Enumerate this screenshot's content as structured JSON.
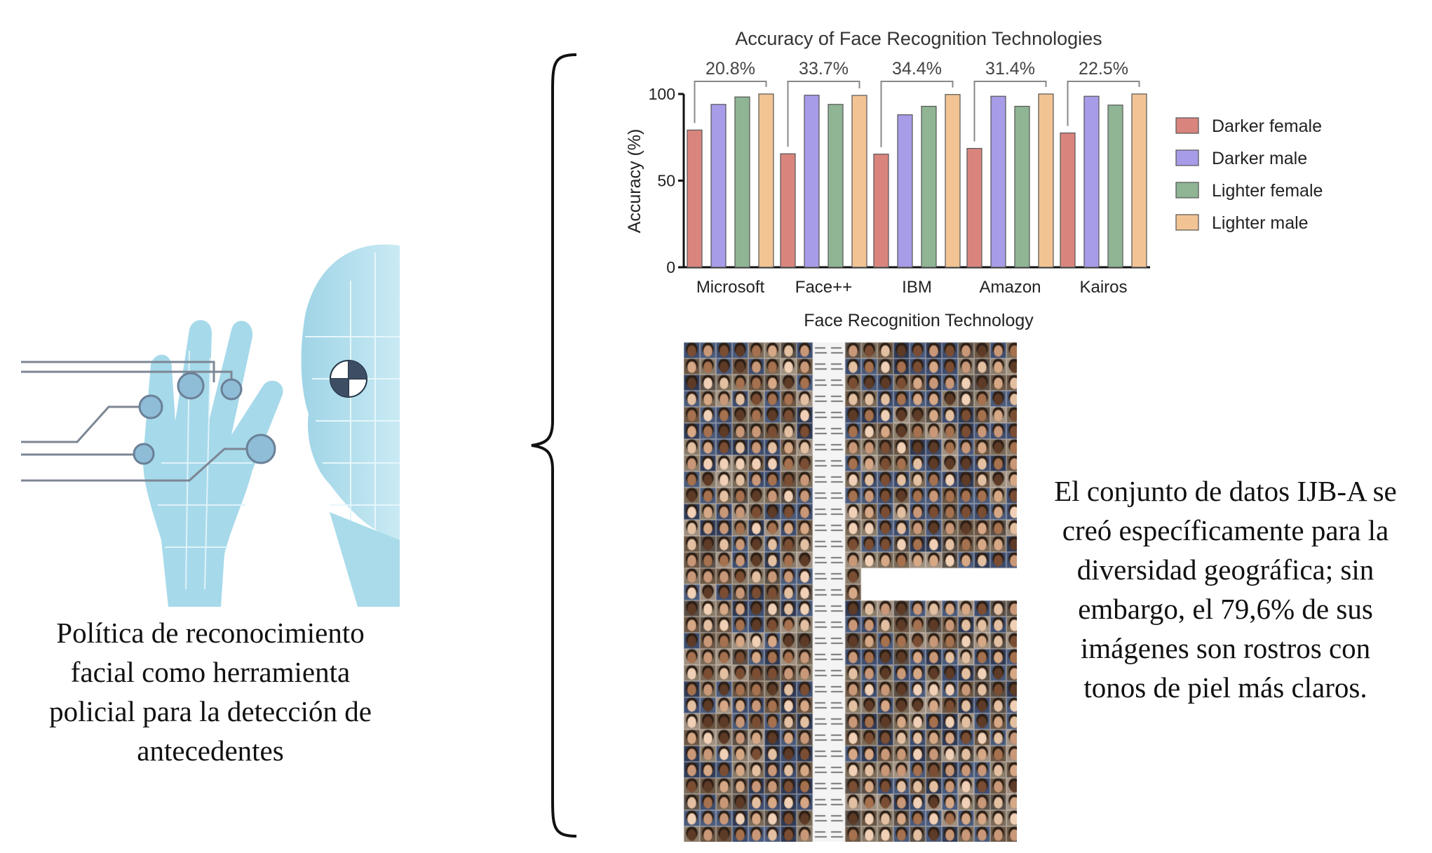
{
  "left_caption": "Política de reconocimiento\nfacial como herramienta\npolicial para la detección de\nantecedentes",
  "right_caption": "El conjunto de datos IJB-A se\ncreó específicamente para la\ndiversidad geográfica; sin\nembargo, el 79,6% de sus\nimágenes son rostros con\ntonos de piel más claros.",
  "chart_data": {
    "type": "bar",
    "title": "Accuracy of Face Recognition Technologies",
    "xlabel": "Face Recognition Technology",
    "ylabel": "Accuracy (%)",
    "ylim": [
      0,
      100
    ],
    "yticks": [
      "0",
      "50",
      "100"
    ],
    "categories": [
      "Microsoft",
      "Face++",
      "IBM",
      "Amazon",
      "Kairos"
    ],
    "gaps": [
      "20.8%",
      "33.7%",
      "34.4%",
      "31.4%",
      "22.5%"
    ],
    "series": [
      {
        "name": "Darker female",
        "color": "#d9857e",
        "values": [
          79.2,
          65.5,
          65.3,
          68.6,
          77.5
        ]
      },
      {
        "name": "Darker male",
        "color": "#a79ce8",
        "values": [
          94.0,
          99.3,
          88.0,
          98.7,
          98.7
        ]
      },
      {
        "name": "Lighter female",
        "color": "#8fb594",
        "values": [
          98.3,
          94.0,
          92.9,
          92.9,
          93.6
        ]
      },
      {
        "name": "Lighter male",
        "color": "#f2c494",
        "values": [
          100,
          99.2,
          99.7,
          100,
          100
        ]
      }
    ],
    "legend_position": "right",
    "grid": false
  }
}
